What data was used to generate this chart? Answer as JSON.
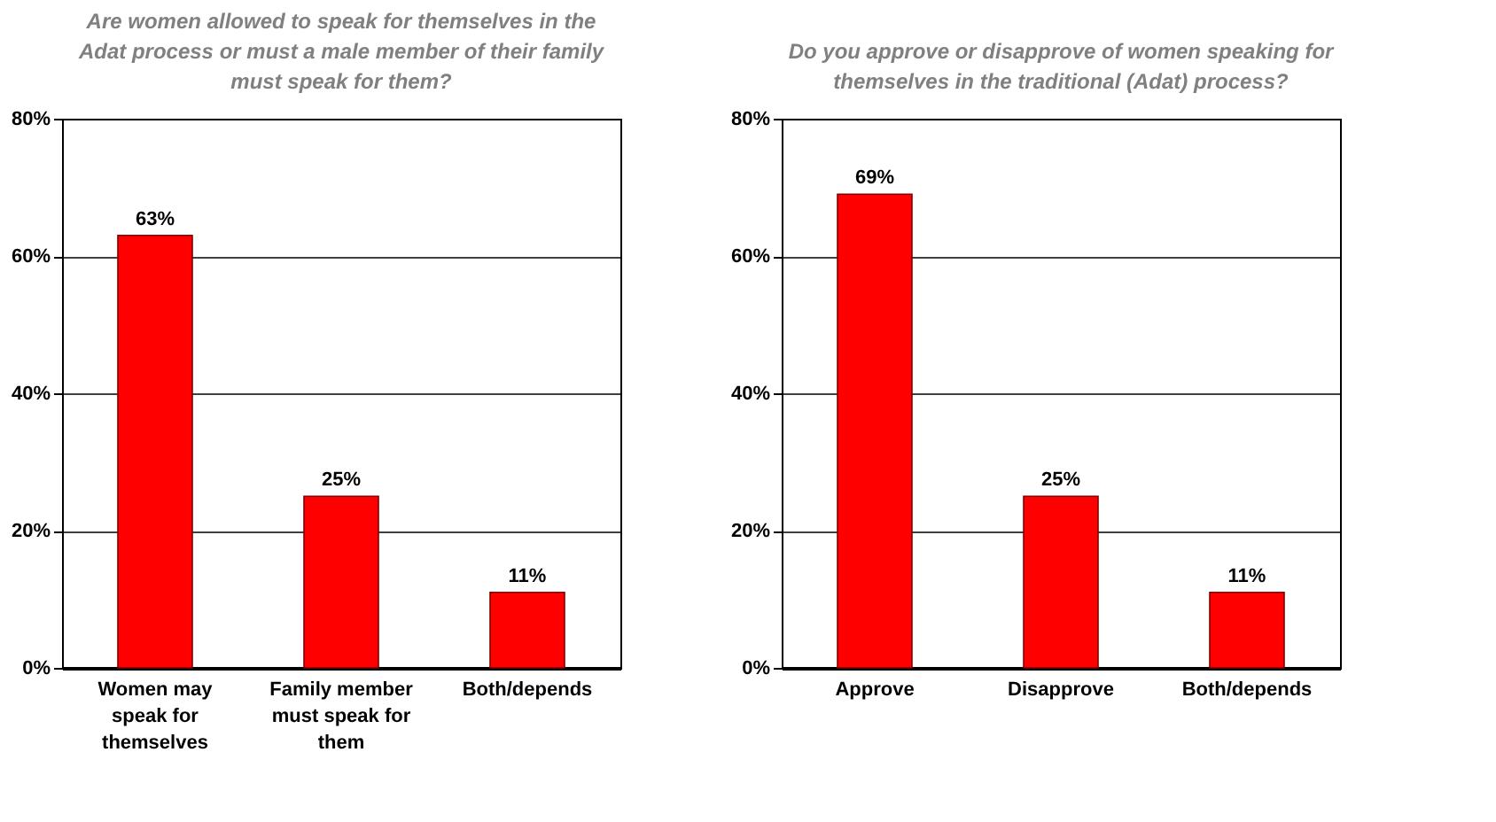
{
  "chart_data": [
    {
      "type": "bar",
      "title": "Are women allowed to speak for themselves in the Adat process or must a male member of their family must speak for them?",
      "categories": [
        "Women may speak for themselves",
        "Family member must speak for them",
        "Both/depends"
      ],
      "values": [
        63,
        25,
        11
      ],
      "color": "#ff0000",
      "ylim": [
        0,
        80
      ],
      "yticks": [
        {
          "value": 0,
          "label": "0%"
        },
        {
          "value": 20,
          "label": "20%"
        },
        {
          "value": 40,
          "label": "40%"
        },
        {
          "value": 60,
          "label": "60%"
        },
        {
          "value": 80,
          "label": "80%"
        }
      ],
      "grid": "y",
      "value_labels": [
        "63%",
        "25%",
        "11%"
      ]
    },
    {
      "type": "bar",
      "title": "Do you approve or disapprove of women speaking for themselves in the traditional (Adat) process?",
      "categories": [
        "Approve",
        "Disapprove",
        "Both/depends"
      ],
      "values": [
        69,
        25,
        11
      ],
      "color": "#ff0000",
      "ylim": [
        0,
        80
      ],
      "yticks": [
        {
          "value": 0,
          "label": "0%"
        },
        {
          "value": 20,
          "label": "20%"
        },
        {
          "value": 40,
          "label": "40%"
        },
        {
          "value": 60,
          "label": "60%"
        },
        {
          "value": 80,
          "label": "80%"
        }
      ],
      "grid": "y",
      "value_labels": [
        "69%",
        "25%",
        "11%"
      ]
    }
  ]
}
